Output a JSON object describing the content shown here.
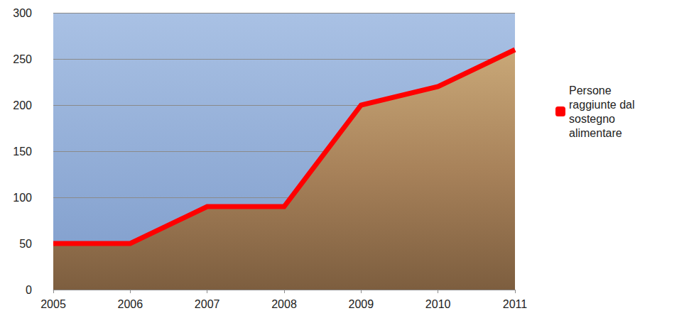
{
  "chart_data": {
    "type": "area",
    "categories": [
      "2005",
      "2006",
      "2007",
      "2008",
      "2009",
      "2010",
      "2011"
    ],
    "series": [
      {
        "name": "Persone raggiunte dal sostegno alimentare",
        "color": "#ff0000",
        "values": [
          50,
          50,
          90,
          90,
          200,
          220,
          260
        ]
      }
    ],
    "ylim": [
      0,
      300
    ],
    "yticks": [
      0,
      50,
      100,
      150,
      200,
      250,
      300
    ],
    "grid": true,
    "legend": "right"
  }
}
